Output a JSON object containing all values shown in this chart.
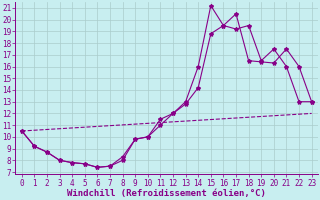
{
  "bg_color": "#c8eef0",
  "line_color": "#880088",
  "grid_color": "#aacccc",
  "xlabel": "Windchill (Refroidissement éolien,°C)",
  "xlim": [
    -0.5,
    23.5
  ],
  "ylim": [
    6.8,
    21.5
  ],
  "xticks": [
    0,
    1,
    2,
    3,
    4,
    5,
    6,
    7,
    8,
    9,
    10,
    11,
    12,
    13,
    14,
    15,
    16,
    17,
    18,
    19,
    20,
    21,
    22,
    23
  ],
  "yticks": [
    7,
    8,
    9,
    10,
    11,
    12,
    13,
    14,
    15,
    16,
    17,
    18,
    19,
    20,
    21
  ],
  "curve1_x": [
    0,
    1,
    2,
    3,
    4,
    5,
    6,
    7,
    8,
    9,
    10,
    11,
    12,
    13,
    14,
    15,
    16,
    17,
    18,
    19,
    20,
    21,
    22,
    23
  ],
  "curve1_y": [
    10.5,
    9.2,
    8.7,
    8.0,
    7.8,
    7.7,
    7.4,
    7.5,
    8.0,
    9.8,
    10.0,
    11.0,
    12.0,
    13.0,
    16.0,
    21.2,
    19.5,
    19.2,
    19.5,
    16.5,
    17.5,
    16.0,
    13.0,
    13.0
  ],
  "curve2_x": [
    0,
    1,
    2,
    3,
    4,
    5,
    6,
    7,
    8,
    9,
    10,
    11,
    12,
    13,
    14,
    15,
    16,
    17,
    18,
    19,
    20,
    21,
    22,
    23
  ],
  "curve2_y": [
    10.5,
    9.2,
    8.7,
    8.0,
    7.8,
    7.7,
    7.4,
    7.5,
    8.3,
    9.8,
    10.0,
    11.5,
    12.0,
    12.8,
    14.2,
    18.8,
    19.5,
    20.5,
    16.5,
    16.4,
    16.3,
    17.5,
    16.0,
    13.0
  ],
  "line3_x": [
    0,
    23
  ],
  "line3_y": [
    10.5,
    12.0
  ],
  "tick_fontsize": 5.5,
  "label_fontsize": 6.5
}
